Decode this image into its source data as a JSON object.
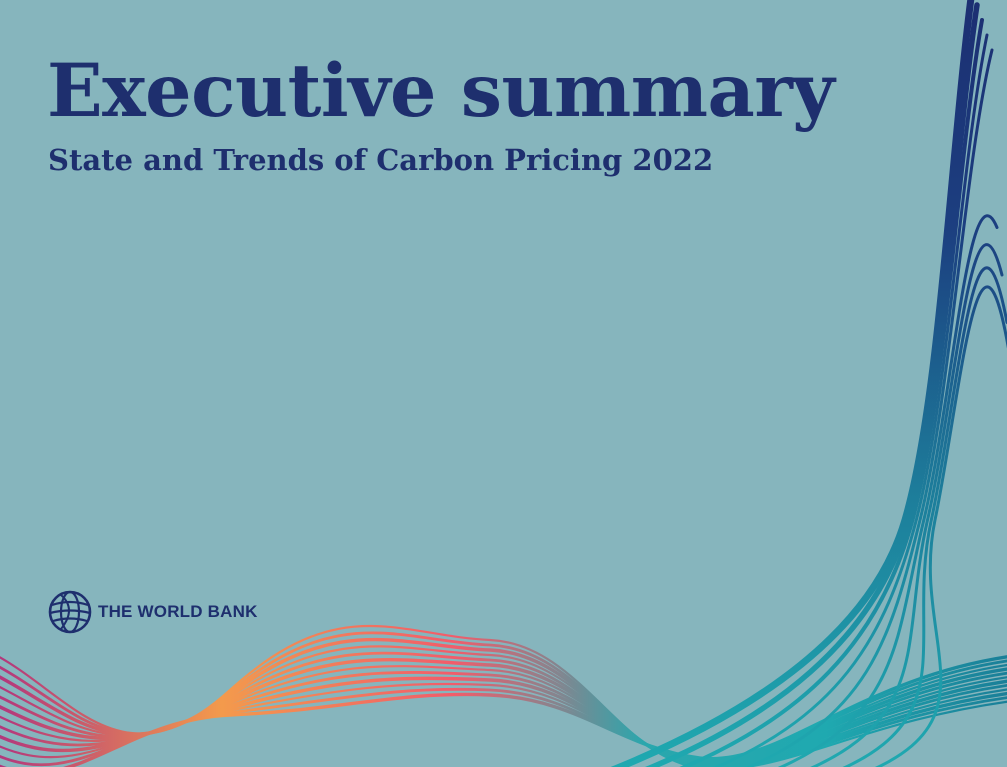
{
  "document": {
    "title": "Executive summary",
    "subtitle": "State and Trends of Carbon Pricing 2022"
  },
  "logo": {
    "text": "THE WORLD BANK",
    "icon": "globe-icon"
  },
  "colors": {
    "background": "#86b5bd",
    "text": "#1e2f6e",
    "wave_navy": "#1c2f72",
    "wave_teal": "#1fa9b0",
    "wave_pink": "#f25c6a",
    "wave_orange": "#f39a4c",
    "wave_magenta": "#b3377c"
  }
}
